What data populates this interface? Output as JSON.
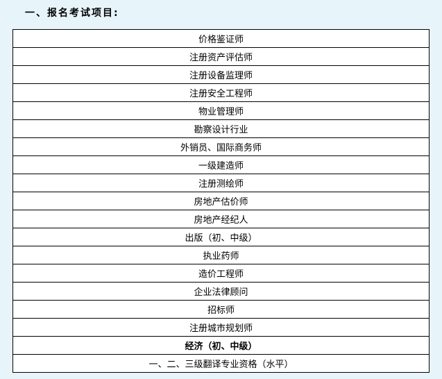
{
  "page": {
    "background_color": "#e7f4fa",
    "table_border_color": "#000000",
    "text_color": "#000000"
  },
  "title": "一、报名考试项目:",
  "table": {
    "rows": [
      {
        "label": "价格鉴证师",
        "bold": false
      },
      {
        "label": "注册资产评估师",
        "bold": false
      },
      {
        "label": "注册设备监理师",
        "bold": false
      },
      {
        "label": "注册安全工程师",
        "bold": false
      },
      {
        "label": "物业管理师",
        "bold": false
      },
      {
        "label": "勘察设计行业",
        "bold": false
      },
      {
        "label": "外销员、国际商务师",
        "bold": false
      },
      {
        "label": "一级建造师",
        "bold": false
      },
      {
        "label": "注册测绘师",
        "bold": false
      },
      {
        "label": "房地产估价师",
        "bold": false
      },
      {
        "label": "房地产经纪人",
        "bold": false
      },
      {
        "label": "出版（初、中级）",
        "bold": false
      },
      {
        "label": "执业药师",
        "bold": false
      },
      {
        "label": "造价工程师",
        "bold": false
      },
      {
        "label": "企业法律顾问",
        "bold": false
      },
      {
        "label": "招标师",
        "bold": false
      },
      {
        "label": "注册城市规划师",
        "bold": false
      },
      {
        "label": "经济（初、中级）",
        "bold": true
      },
      {
        "label": "一、二、三级翻译专业资格（水平）",
        "bold": false
      }
    ]
  }
}
